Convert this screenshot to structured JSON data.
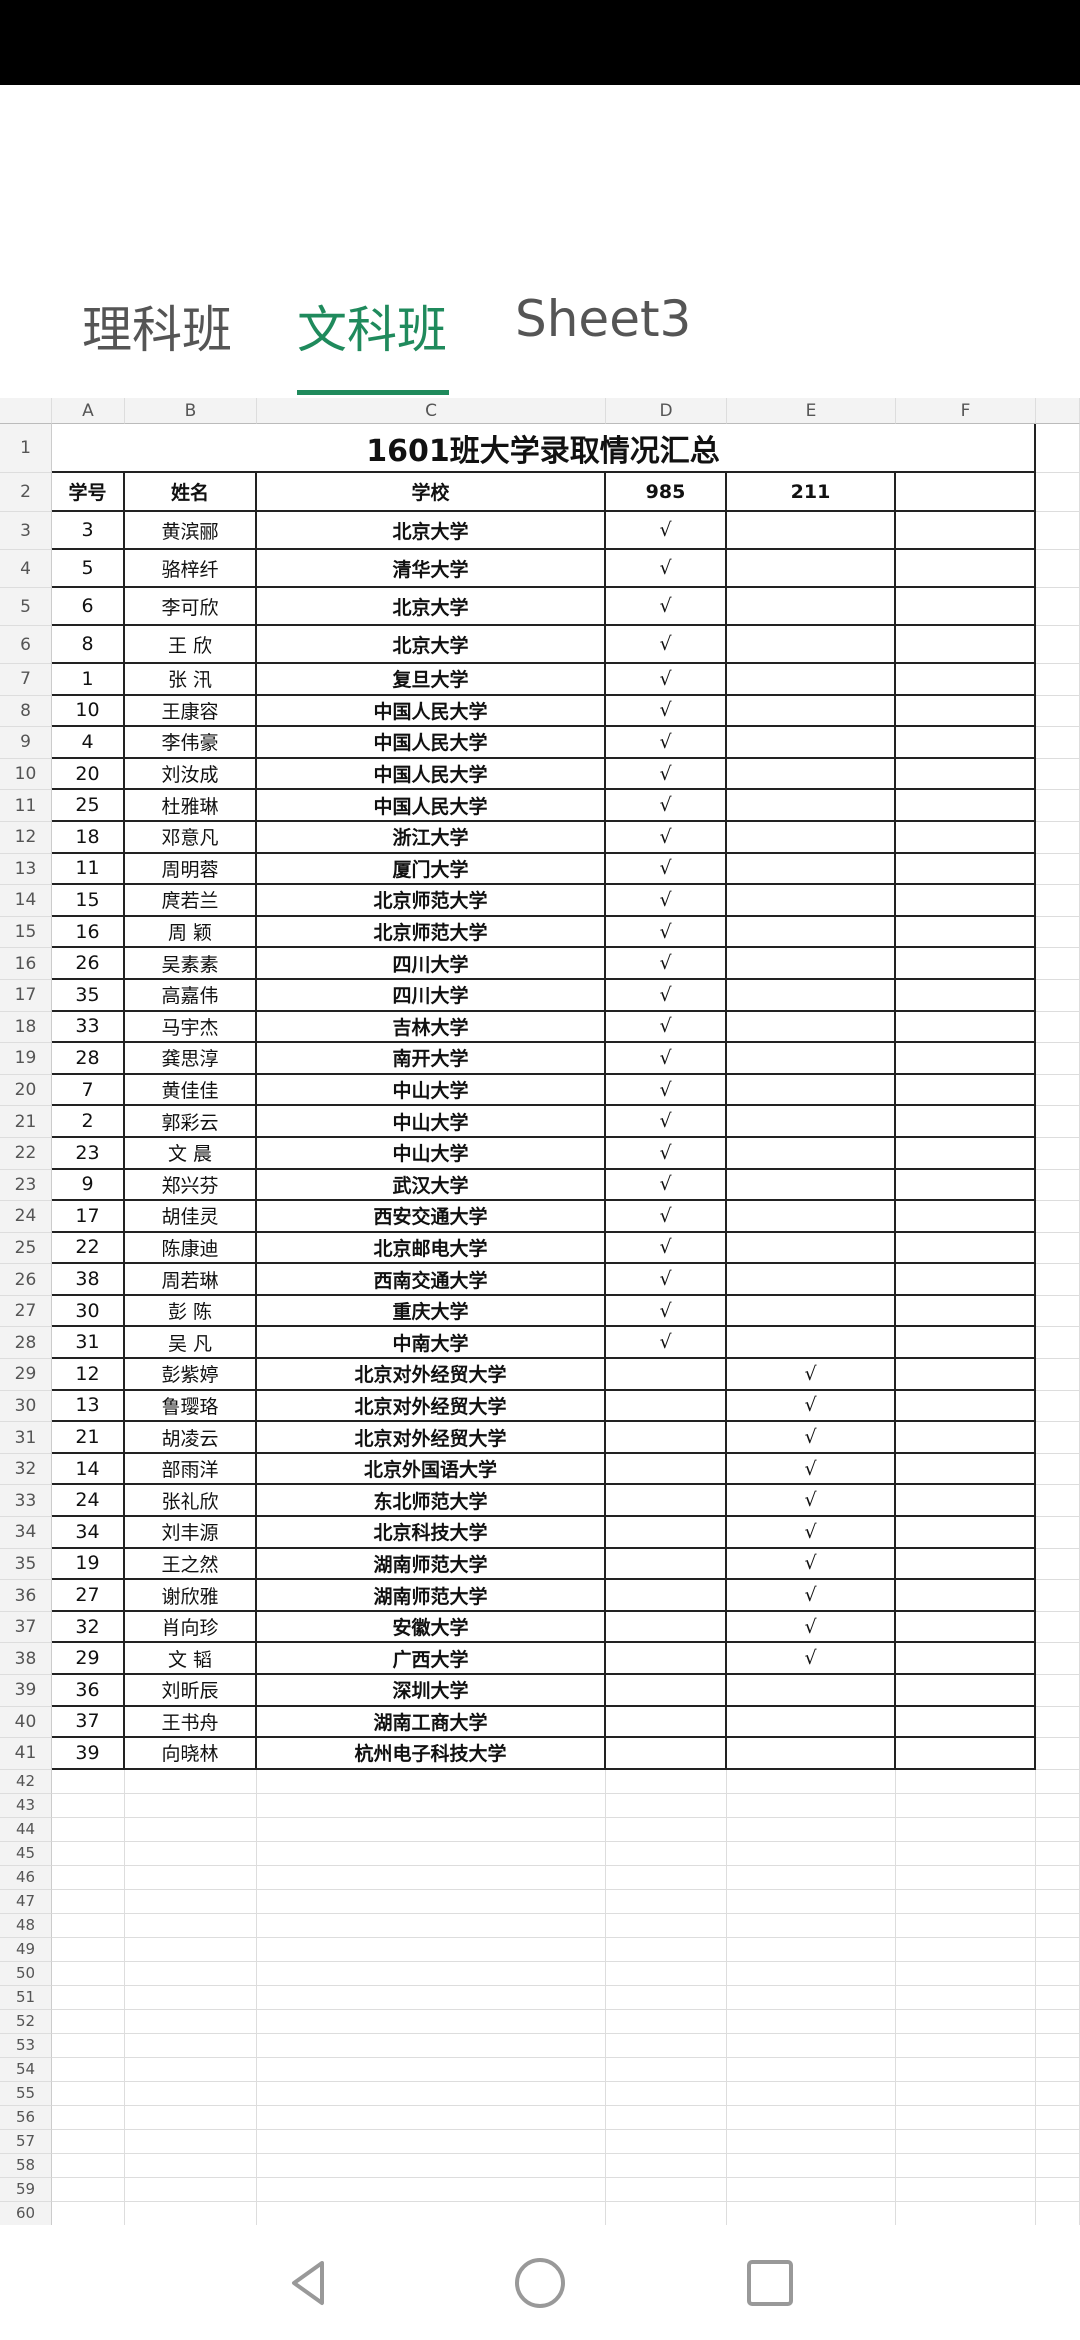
{
  "tabs": [
    {
      "label": "理科班"
    },
    {
      "label": "文科班",
      "active": true
    },
    {
      "label": "Sheet3"
    }
  ],
  "accent_color": "#1f8a5c",
  "columns": [
    "A",
    "B",
    "C",
    "D",
    "E",
    "F"
  ],
  "sheet_title": "1601班大学录取情况汇总",
  "headers": [
    "学号",
    "姓名",
    "学校",
    "985",
    "211"
  ],
  "check_mark": "√",
  "rows": [
    {
      "no": "3",
      "name": "黄滨郦",
      "school": "北京大学",
      "t985": true,
      "t211": false
    },
    {
      "no": "5",
      "name": "骆梓纤",
      "school": "清华大学",
      "t985": true,
      "t211": false
    },
    {
      "no": "6",
      "name": "李可欣",
      "school": "北京大学",
      "t985": true,
      "t211": false
    },
    {
      "no": "8",
      "name": "王 欣",
      "school": "北京大学",
      "t985": true,
      "t211": false
    },
    {
      "no": "1",
      "name": "张 汛",
      "school": "复旦大学",
      "t985": true,
      "t211": false
    },
    {
      "no": "10",
      "name": "王康容",
      "school": "中国人民大学",
      "t985": true,
      "t211": false
    },
    {
      "no": "4",
      "name": "李伟豪",
      "school": "中国人民大学",
      "t985": true,
      "t211": false
    },
    {
      "no": "20",
      "name": "刘汝成",
      "school": "中国人民大学",
      "t985": true,
      "t211": false
    },
    {
      "no": "25",
      "name": "杜雅琳",
      "school": "中国人民大学",
      "t985": true,
      "t211": false
    },
    {
      "no": "18",
      "name": "邓意凡",
      "school": "浙江大学",
      "t985": true,
      "t211": false
    },
    {
      "no": "11",
      "name": "周明蓉",
      "school": "厦门大学",
      "t985": true,
      "t211": false
    },
    {
      "no": "15",
      "name": "庹若兰",
      "school": "北京师范大学",
      "t985": true,
      "t211": false
    },
    {
      "no": "16",
      "name": "周 颖",
      "school": "北京师范大学",
      "t985": true,
      "t211": false
    },
    {
      "no": "26",
      "name": "吴素素",
      "school": "四川大学",
      "t985": true,
      "t211": false
    },
    {
      "no": "35",
      "name": "高嘉伟",
      "school": "四川大学",
      "t985": true,
      "t211": false
    },
    {
      "no": "33",
      "name": "马宇杰",
      "school": "吉林大学",
      "t985": true,
      "t211": false
    },
    {
      "no": "28",
      "name": "龚思淳",
      "school": "南开大学",
      "t985": true,
      "t211": false
    },
    {
      "no": "7",
      "name": "黄佳佳",
      "school": "中山大学",
      "t985": true,
      "t211": false
    },
    {
      "no": "2",
      "name": "郭彩云",
      "school": "中山大学",
      "t985": true,
      "t211": false
    },
    {
      "no": "23",
      "name": "文 晨",
      "school": "中山大学",
      "t985": true,
      "t211": false
    },
    {
      "no": "9",
      "name": "郑兴芬",
      "school": "武汉大学",
      "t985": true,
      "t211": false
    },
    {
      "no": "17",
      "name": "胡佳灵",
      "school": "西安交通大学",
      "t985": true,
      "t211": false
    },
    {
      "no": "22",
      "name": "陈康迪",
      "school": "北京邮电大学",
      "t985": true,
      "t211": false
    },
    {
      "no": "38",
      "name": "周若琳",
      "school": "西南交通大学",
      "t985": true,
      "t211": false
    },
    {
      "no": "30",
      "name": "彭 陈",
      "school": "重庆大学",
      "t985": true,
      "t211": false
    },
    {
      "no": "31",
      "name": "吴 凡",
      "school": "中南大学",
      "t985": true,
      "t211": false
    },
    {
      "no": "12",
      "name": "彭紫婷",
      "school": "北京对外经贸大学",
      "t985": false,
      "t211": true
    },
    {
      "no": "13",
      "name": "鲁璎珞",
      "school": "北京对外经贸大学",
      "t985": false,
      "t211": true
    },
    {
      "no": "21",
      "name": "胡凌云",
      "school": "北京对外经贸大学",
      "t985": false,
      "t211": true
    },
    {
      "no": "14",
      "name": "部雨洋",
      "school": "北京外国语大学",
      "t985": false,
      "t211": true
    },
    {
      "no": "24",
      "name": "张礼欣",
      "school": "东北师范大学",
      "t985": false,
      "t211": true
    },
    {
      "no": "34",
      "name": "刘丰源",
      "school": "北京科技大学",
      "t985": false,
      "t211": true
    },
    {
      "no": "19",
      "name": "王之然",
      "school": "湖南师范大学",
      "t985": false,
      "t211": true
    },
    {
      "no": "27",
      "name": "谢欣雅",
      "school": "湖南师范大学",
      "t985": false,
      "t211": true
    },
    {
      "no": "32",
      "name": "肖向珍",
      "school": "安徽大学",
      "t985": false,
      "t211": true
    },
    {
      "no": "29",
      "name": "文 韬",
      "school": "广西大学",
      "t985": false,
      "t211": true
    },
    {
      "no": "36",
      "name": "刘昕辰",
      "school": "深圳大学",
      "t985": false,
      "t211": false
    },
    {
      "no": "37",
      "name": "王书舟",
      "school": "湖南工商大学",
      "t985": false,
      "t211": false
    },
    {
      "no": "39",
      "name": "向晓林",
      "school": "杭州电子科技大学",
      "t985": false,
      "t211": false
    }
  ],
  "last_row_number": 60,
  "navbar": {
    "back": "back-icon",
    "home": "home-icon",
    "recents": "recents-icon"
  }
}
